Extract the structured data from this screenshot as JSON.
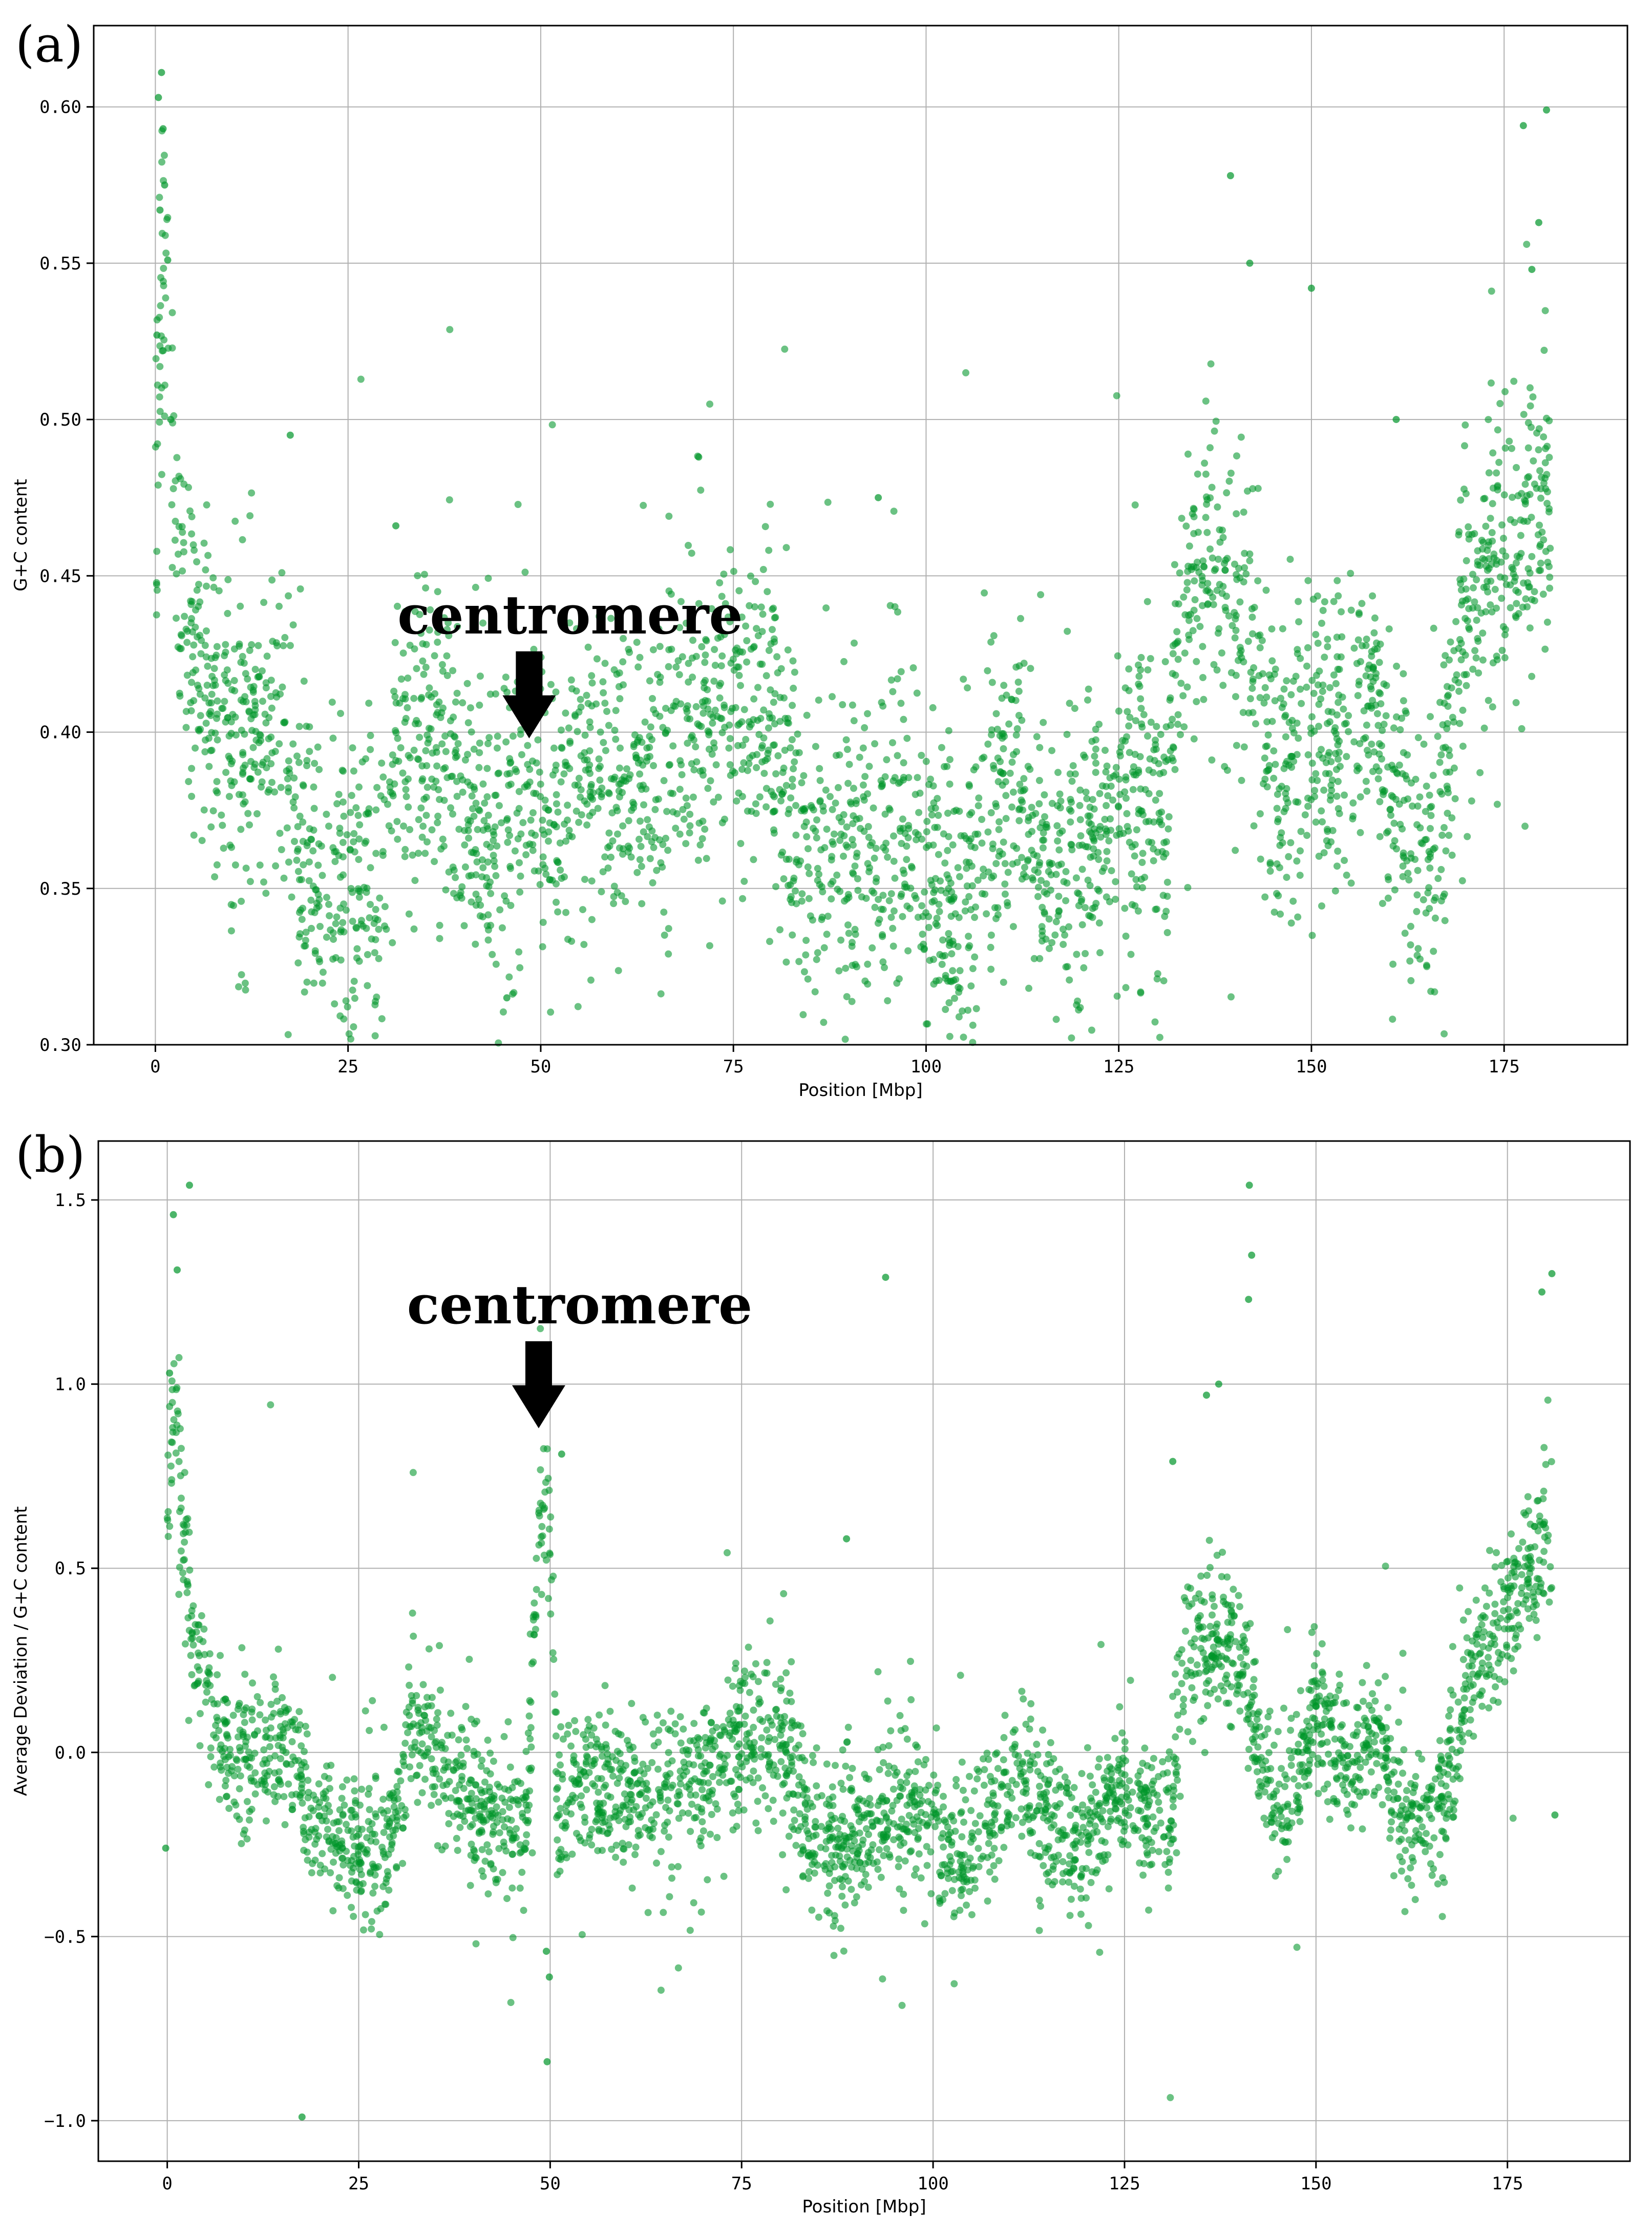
{
  "chart_data": [
    {
      "type": "scatter",
      "panel": "(a)",
      "xlabel": "Position [Mbp]",
      "ylabel": "G+C content",
      "xlim": [
        -8,
        191
      ],
      "ylim": [
        0.3,
        0.626
      ],
      "xticks": [
        0,
        25,
        50,
        75,
        100,
        125,
        150,
        175
      ],
      "yticks": [
        0.3,
        0.35,
        0.4,
        0.45,
        0.5,
        0.55,
        0.6
      ],
      "ytick_labels": [
        "0.30",
        "0.35",
        "0.40",
        "0.45",
        "0.50",
        "0.55",
        "0.60"
      ],
      "grid": true,
      "color": "#00962a",
      "annotation": {
        "text": "centromere",
        "x": 48.5,
        "y": 0.398
      },
      "trend": {
        "x": [
          0,
          1,
          3,
          5,
          8,
          12,
          16,
          19,
          22,
          25,
          29,
          32,
          36,
          40,
          44,
          47,
          49,
          51,
          55,
          60,
          65,
          70,
          75,
          80,
          84,
          88,
          92,
          96,
          100,
          104,
          108,
          112,
          116,
          120,
          124,
          128,
          131,
          133,
          136,
          140,
          143,
          146,
          150,
          154,
          158,
          161,
          164,
          167,
          170,
          174,
          178,
          181
        ],
        "y": [
          0.49,
          0.55,
          0.45,
          0.42,
          0.4,
          0.39,
          0.4,
          0.36,
          0.35,
          0.348,
          0.35,
          0.4,
          0.4,
          0.38,
          0.37,
          0.38,
          0.392,
          0.37,
          0.39,
          0.385,
          0.39,
          0.4,
          0.41,
          0.4,
          0.36,
          0.355,
          0.36,
          0.37,
          0.355,
          0.345,
          0.37,
          0.38,
          0.36,
          0.36,
          0.375,
          0.38,
          0.37,
          0.44,
          0.45,
          0.44,
          0.41,
          0.38,
          0.4,
          0.39,
          0.41,
          0.37,
          0.36,
          0.37,
          0.44,
          0.46,
          0.47,
          0.47
        ]
      },
      "spread": 0.024,
      "spikes": [
        {
          "x": 0.4,
          "y": 0.603
        },
        {
          "x": 0.8,
          "y": 0.611
        },
        {
          "x": 1.0,
          "y": 0.593
        },
        {
          "x": 1.2,
          "y": 0.575
        },
        {
          "x": 0.6,
          "y": 0.567
        },
        {
          "x": 1.6,
          "y": 0.551
        },
        {
          "x": 0.2,
          "y": 0.527
        },
        {
          "x": 2.0,
          "y": 0.5
        },
        {
          "x": 17.5,
          "y": 0.495
        },
        {
          "x": 31.2,
          "y": 0.466
        },
        {
          "x": 45.6,
          "y": 0.315
        },
        {
          "x": 70.5,
          "y": 0.488
        },
        {
          "x": 93.8,
          "y": 0.475
        },
        {
          "x": 139.5,
          "y": 0.578
        },
        {
          "x": 142.0,
          "y": 0.55
        },
        {
          "x": 150.0,
          "y": 0.542
        },
        {
          "x": 161.0,
          "y": 0.5
        },
        {
          "x": 177.5,
          "y": 0.594
        },
        {
          "x": 180.5,
          "y": 0.599
        },
        {
          "x": 179.5,
          "y": 0.563
        },
        {
          "x": 178.6,
          "y": 0.548
        }
      ]
    },
    {
      "type": "scatter",
      "panel": "(b)",
      "xlabel": "Position [Mbp]",
      "ylabel": "Average Deviation / G+C content",
      "xlim": [
        -9,
        191
      ],
      "ylim": [
        -1.11,
        1.66
      ],
      "xticks": [
        0,
        25,
        50,
        75,
        100,
        125,
        150,
        175
      ],
      "yticks": [
        -1.0,
        -0.5,
        0.0,
        0.5,
        1.0,
        1.5
      ],
      "ytick_labels": [
        "−1.0",
        "−0.5",
        "0.0",
        "0.5",
        "1.0",
        "1.5"
      ],
      "grid": true,
      "color": "#00962a",
      "annotation": {
        "text": "centromere",
        "x": 48.5,
        "y": 0.88
      },
      "trend": {
        "x": [
          0,
          1,
          3,
          5,
          8,
          12,
          16,
          19,
          22,
          25,
          29,
          32,
          36,
          40,
          44,
          47,
          48,
          49,
          50,
          51,
          55,
          60,
          65,
          70,
          75,
          80,
          84,
          88,
          92,
          96,
          100,
          104,
          108,
          112,
          116,
          120,
          124,
          128,
          131,
          133,
          136,
          140,
          143,
          146,
          150,
          154,
          158,
          161,
          164,
          167,
          170,
          174,
          178,
          181
        ],
        "y": [
          0.6,
          1.0,
          0.35,
          0.15,
          0.0,
          -0.05,
          0.05,
          -0.22,
          -0.24,
          -0.25,
          -0.26,
          0.1,
          -0.05,
          -0.15,
          -0.2,
          -0.2,
          0.4,
          0.75,
          0.6,
          -0.2,
          -0.05,
          -0.12,
          -0.1,
          -0.05,
          0.05,
          0.05,
          -0.22,
          -0.25,
          -0.2,
          -0.15,
          -0.2,
          -0.3,
          -0.15,
          -0.1,
          -0.2,
          -0.25,
          -0.1,
          -0.15,
          -0.2,
          0.25,
          0.3,
          0.3,
          -0.05,
          -0.15,
          0.1,
          -0.05,
          0.05,
          -0.15,
          -0.2,
          -0.1,
          0.2,
          0.35,
          0.5,
          0.6
        ]
      },
      "spread": 0.1,
      "spikes": [
        {
          "x": 2.9,
          "y": 1.54
        },
        {
          "x": 0.8,
          "y": 1.46
        },
        {
          "x": 1.3,
          "y": 1.31
        },
        {
          "x": 0.3,
          "y": 1.03
        },
        {
          "x": -0.2,
          "y": -0.26
        },
        {
          "x": 17.6,
          "y": -0.99
        },
        {
          "x": 49.6,
          "y": -0.84
        },
        {
          "x": 49.9,
          "y": -0.61
        },
        {
          "x": 49.5,
          "y": -0.54
        },
        {
          "x": 93.8,
          "y": 1.29
        },
        {
          "x": 131.3,
          "y": 0.79
        },
        {
          "x": 135.7,
          "y": 0.97
        },
        {
          "x": 137.3,
          "y": 1.0
        },
        {
          "x": 141.3,
          "y": 1.54
        },
        {
          "x": 141.6,
          "y": 1.35
        },
        {
          "x": 141.2,
          "y": 1.23
        },
        {
          "x": 180.8,
          "y": 1.3
        },
        {
          "x": 179.5,
          "y": 1.25
        },
        {
          "x": 181.2,
          "y": -0.17
        },
        {
          "x": 88.7,
          "y": 0.58
        },
        {
          "x": 51.5,
          "y": 0.81
        }
      ]
    }
  ]
}
